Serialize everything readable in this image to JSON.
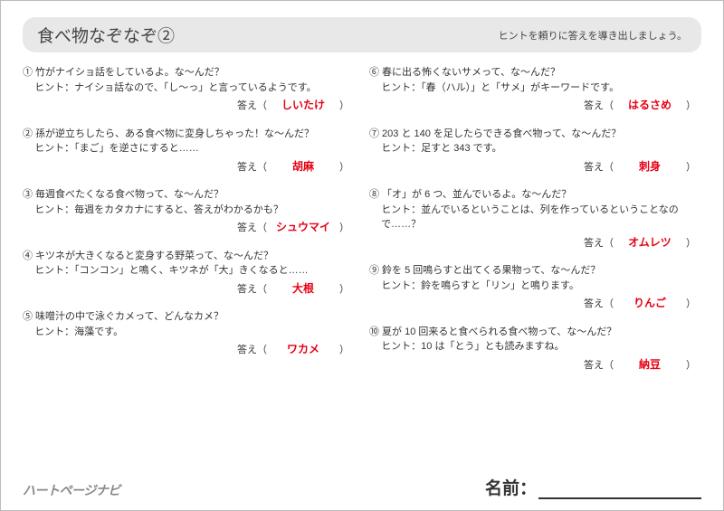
{
  "header": {
    "title": "食べ物なぞなぞ②",
    "subtitle": "ヒントを頼りに答えを導き出しましょう。"
  },
  "answer_label": "答え（",
  "answer_close": "）",
  "left": [
    {
      "num": "①",
      "q": "竹がナイショ話をしているよ。な～んだ？",
      "hint": "ヒント：ナイショ話なので、「し～っ」と言っているようです。",
      "a": "しいたけ"
    },
    {
      "num": "②",
      "q": "孫が逆立ちしたら、ある食べ物に変身しちゃった！な～んだ？",
      "hint": "ヒント：「まご」を逆さにすると……",
      "a": "胡麻"
    },
    {
      "num": "③",
      "q": "毎週食べたくなる食べ物って、な～んだ？",
      "hint": "ヒント：毎週をカタカナにすると、答えがわかるかも？",
      "a": "シュウマイ"
    },
    {
      "num": "④",
      "q": "キツネが大きくなると変身する野菜って、な～んだ？",
      "hint": "ヒント：「コンコン」と鳴く、キツネが「大」きくなると……",
      "a": "大根"
    },
    {
      "num": "⑤",
      "q": "味噌汁の中で泳ぐカメって、どんなカメ？",
      "hint": "ヒント：海藻です。",
      "a": "ワカメ"
    }
  ],
  "right": [
    {
      "num": "⑥",
      "q": "春に出る怖くないサメって、な～んだ？",
      "hint": "ヒント：「春（ハル）」と「サメ」がキーワードです。",
      "a": "はるさめ"
    },
    {
      "num": "⑦",
      "q": "203 と 140 を足したらできる食べ物って、な～んだ？",
      "hint": "ヒント：足すと 343 です。",
      "a": "刺身"
    },
    {
      "num": "⑧",
      "q": "「オ」が 6 つ、並んでいるよ。な～んだ？",
      "hint": "ヒント：並んでいるということは、列を作っているということなので……？",
      "a": "オムレツ"
    },
    {
      "num": "⑨",
      "q": "鈴を 5 回鳴らすと出てくる果物って、な～んだ？",
      "hint": "ヒント：鈴を鳴らすと「リン」と鳴ります。",
      "a": "りんご"
    },
    {
      "num": "⑩",
      "q": "夏が 10 回来ると食べられる食べ物って、な～んだ？",
      "hint": "ヒント：10 は「とう」とも読みますね。",
      "a": "納豆"
    }
  ],
  "footer": {
    "logo": "ハートページナビ",
    "name_label": "名前："
  }
}
